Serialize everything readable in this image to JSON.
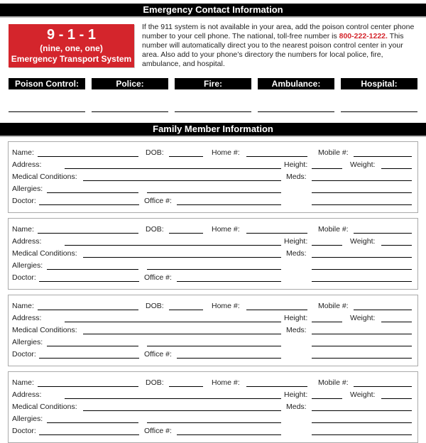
{
  "emergency": {
    "title": "Emergency Contact Information",
    "badge": {
      "number": "9 - 1 - 1",
      "spelled": "(nine, one, one)",
      "system": "Emergency Transport System"
    },
    "intro_before": "If the 911 system is not available in your area, add the poison control center phone number to your cell phone. The national, toll-free number is ",
    "poison_number": "800-222-1222.",
    "intro_after": " This number will automatically direct you to the nearest poison control center in your area. Also add to your phone’s directory the numbers for local police, fire, ambulance, and hospital.",
    "contacts": [
      "Poison Control:",
      "Police:",
      "Fire:",
      "Ambulance:",
      "Hospital:"
    ]
  },
  "family": {
    "title": "Family Member Information",
    "labels": {
      "name": "Name:",
      "dob": "DOB:",
      "home": "Home #:",
      "mobile": "Mobile #:",
      "address": "Address:",
      "height": "Height:",
      "weight": "Weight:",
      "medical": "Medical Conditions:",
      "meds": "Meds:",
      "allergies": "Allergies:",
      "doctor": "Doctor:",
      "office": "Office #:"
    },
    "members": [
      {},
      {},
      {},
      {}
    ]
  },
  "colors": {
    "accent": "#d4252c",
    "bar": "#000000"
  }
}
